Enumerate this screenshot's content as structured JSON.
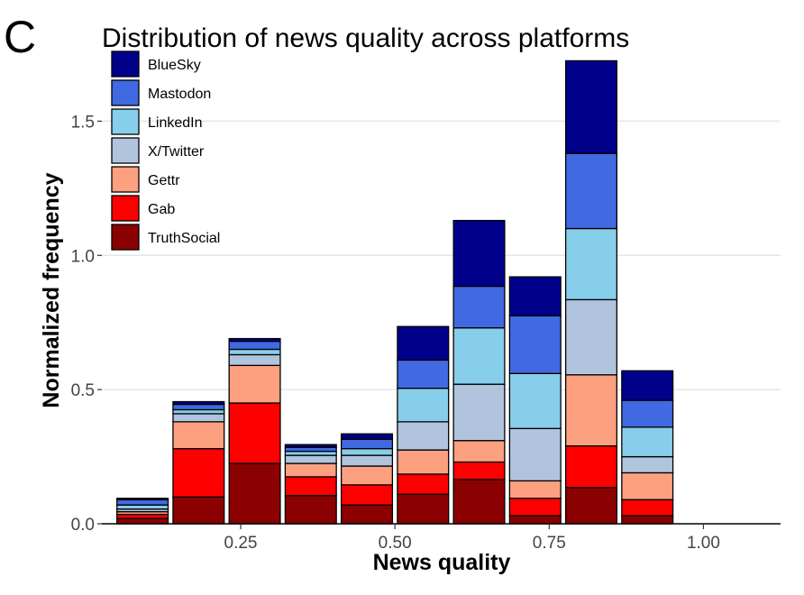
{
  "panel_label": "C",
  "chart_data": {
    "type": "bar",
    "stacked": true,
    "title": "Distribution of news quality across platforms",
    "xlabel": "News quality",
    "ylabel": "Normalized frequency",
    "xlim": [
      0.025,
      1.125
    ],
    "ylim": [
      0,
      1.75
    ],
    "bin_width": 0.0909,
    "x_ticks": [
      0.25,
      0.5,
      0.75,
      1.0
    ],
    "x_tick_labels": [
      "0.25",
      "0.50",
      "0.75",
      "1.00"
    ],
    "y_ticks": [
      0,
      0.5,
      1.0,
      1.5
    ],
    "y_tick_labels": [
      "0.0",
      "0.5",
      "1.0",
      "1.5"
    ],
    "grid": true,
    "legend_position": "top-left",
    "x": [
      0.0909,
      0.1818,
      0.2727,
      0.3636,
      0.4545,
      0.5455,
      0.6364,
      0.7273,
      0.8182,
      0.9091,
      1.0
    ],
    "series": [
      {
        "name": "TruthSocial",
        "color": "#8b0000",
        "values": [
          0.02,
          0.1,
          0.225,
          0.105,
          0.07,
          0.11,
          0.165,
          0.03,
          0.135,
          0.03,
          0.0
        ]
      },
      {
        "name": "Gab",
        "color": "#ff0000",
        "values": [
          0.015,
          0.18,
          0.225,
          0.07,
          0.075,
          0.075,
          0.065,
          0.065,
          0.155,
          0.06,
          0.0
        ]
      },
      {
        "name": "Gettr",
        "color": "#fca080",
        "values": [
          0.01,
          0.1,
          0.14,
          0.05,
          0.07,
          0.09,
          0.08,
          0.065,
          0.265,
          0.1,
          0.0
        ]
      },
      {
        "name": "X/Twitter",
        "color": "#b0c4de",
        "values": [
          0.01,
          0.03,
          0.04,
          0.03,
          0.04,
          0.105,
          0.21,
          0.195,
          0.28,
          0.06,
          0.0
        ]
      },
      {
        "name": "LinkedIn",
        "color": "#87ceeb",
        "values": [
          0.015,
          0.015,
          0.02,
          0.015,
          0.025,
          0.125,
          0.21,
          0.205,
          0.265,
          0.11,
          0.0
        ]
      },
      {
        "name": "Mastodon",
        "color": "#4169e1",
        "values": [
          0.02,
          0.02,
          0.03,
          0.015,
          0.035,
          0.105,
          0.155,
          0.215,
          0.28,
          0.1,
          0.0
        ]
      },
      {
        "name": "BlueSky",
        "color": "#00008b",
        "values": [
          0.005,
          0.01,
          0.01,
          0.01,
          0.02,
          0.125,
          0.245,
          0.145,
          0.345,
          0.11,
          0.0
        ]
      }
    ],
    "legend_order": [
      "BlueSky",
      "Mastodon",
      "LinkedIn",
      "X/Twitter",
      "Gettr",
      "Gab",
      "TruthSocial"
    ]
  }
}
